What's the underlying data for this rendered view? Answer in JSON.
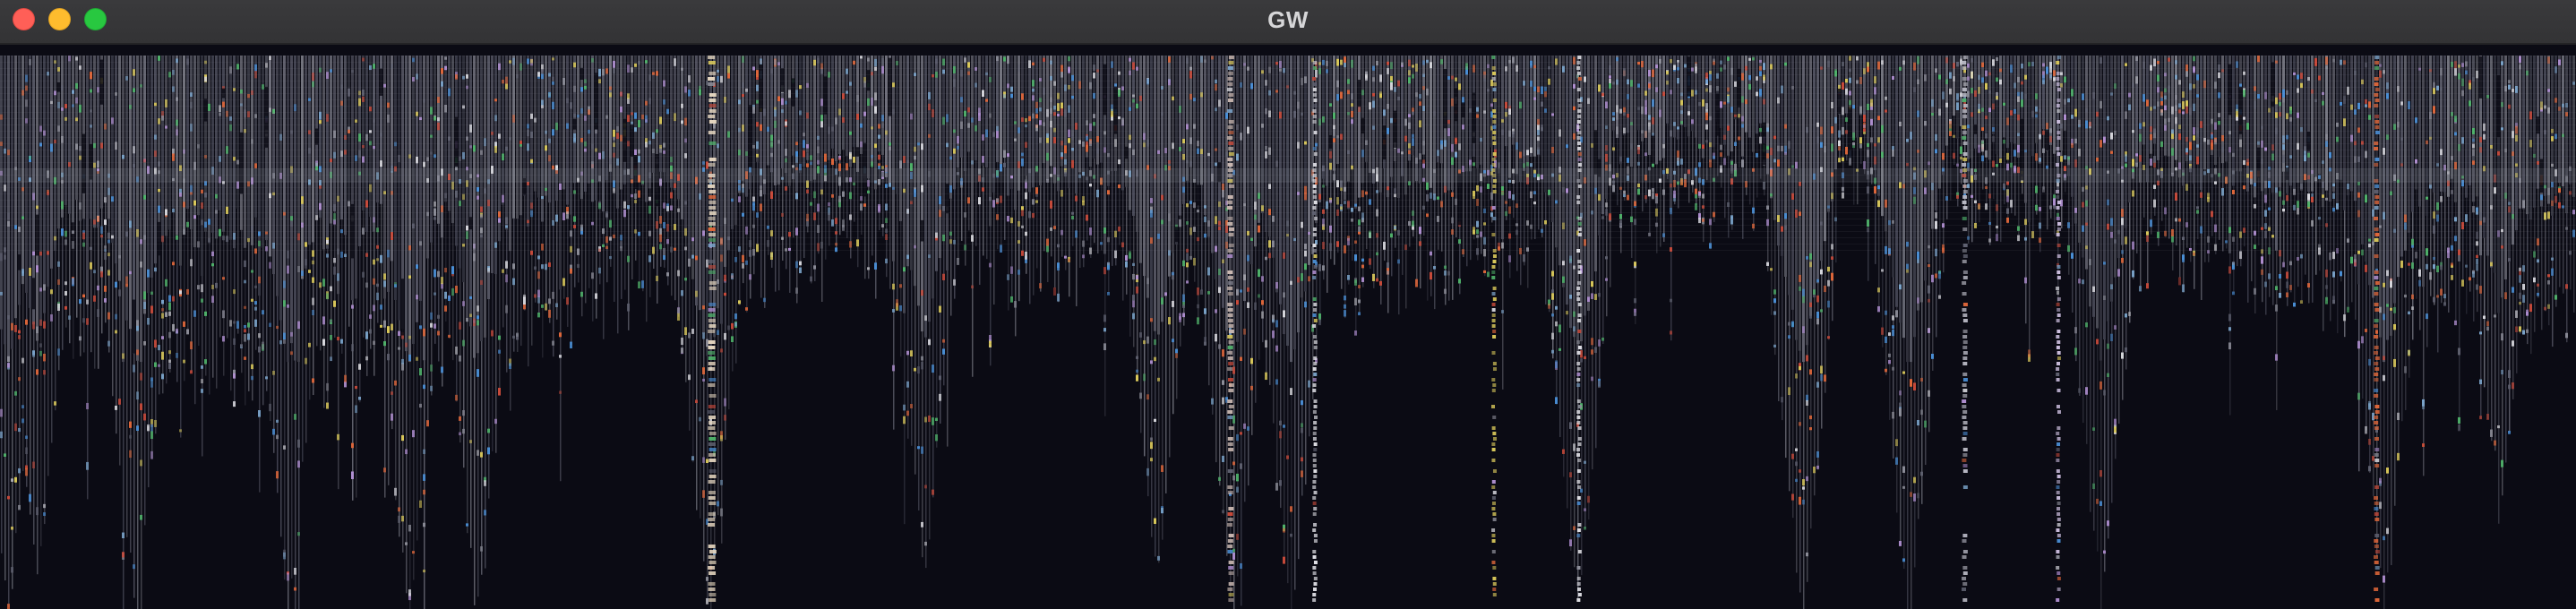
{
  "window": {
    "title": "GW"
  },
  "controls": {
    "close": "close-button",
    "minimize": "minimize-button",
    "zoom": "zoom-button"
  },
  "theme": {
    "titlebar": "#353537",
    "canvas_background": "#0b0b14",
    "accent_colors": [
      "#8d8e99",
      "#5f6170",
      "#e0673a",
      "#4a8fd6",
      "#4fb36a",
      "#d9c85a",
      "#b08fd1",
      "#d7d7dd",
      "#c94a3a",
      "#7aa3c9"
    ]
  }
}
